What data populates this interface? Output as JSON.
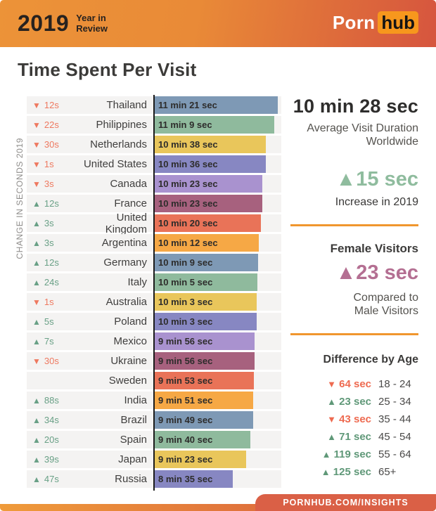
{
  "header": {
    "year": "2019",
    "subtitle_line1": "Year in",
    "subtitle_line2": "Review",
    "logo_porn": "Porn",
    "logo_hub": "hub"
  },
  "title": "Time Spent Per Visit",
  "icons": {
    "up-triangle-icon": "▲",
    "down-triangle-icon": "▼"
  },
  "colors": {
    "change_up": "#69a086",
    "change_down": "#ee7960",
    "age_up": "#5f9878",
    "age_down": "#ee6a50",
    "divider_orange": "#f0962e",
    "green_stat": "#8fbc9e",
    "pink_stat": "#b46f92",
    "header_gradient_start": "#ec9338",
    "header_gradient_end": "#d6553e",
    "hub_badge": "#f7971d"
  },
  "chart_data": {
    "type": "bar",
    "title": "Time Spent Per Visit",
    "axis_label": "CHANGE IN SECONDS 2019",
    "value_unit": "visit duration (min:sec)",
    "x_range_seconds": [
      515,
      681
    ],
    "rows": [
      {
        "country": "Thailand",
        "change": "12s",
        "direction": "down",
        "duration_label": "11 min 21 sec",
        "seconds": 681,
        "bar_color": "#7e99b5"
      },
      {
        "country": "Philippines",
        "change": "22s",
        "direction": "down",
        "duration_label": "11 min 9 sec",
        "seconds": 669,
        "bar_color": "#8fba9d"
      },
      {
        "country": "Netherlands",
        "change": "30s",
        "direction": "down",
        "duration_label": "10 min 38 sec",
        "seconds": 638,
        "bar_color": "#e9c65b"
      },
      {
        "country": "United States",
        "change": "1s",
        "direction": "down",
        "duration_label": "10 min 36 sec",
        "seconds": 636,
        "bar_color": "#8787c2"
      },
      {
        "country": "Canada",
        "change": "3s",
        "direction": "down",
        "duration_label": "10 min 23 sec",
        "seconds": 623,
        "bar_color": "#a992cf"
      },
      {
        "country": "France",
        "change": "12s",
        "direction": "up",
        "duration_label": "10 min 23 sec",
        "seconds": 623,
        "bar_color": "#a7617e"
      },
      {
        "country": "United Kingdom",
        "change": "3s",
        "direction": "up",
        "duration_label": "10 min 20 sec",
        "seconds": 620,
        "bar_color": "#e97358"
      },
      {
        "country": "Argentina",
        "change": "3s",
        "direction": "up",
        "duration_label": "10 min 12 sec",
        "seconds": 612,
        "bar_color": "#f6a845"
      },
      {
        "country": "Germany",
        "change": "12s",
        "direction": "up",
        "duration_label": "10 min 9 sec",
        "seconds": 609,
        "bar_color": "#7e99b5"
      },
      {
        "country": "Italy",
        "change": "24s",
        "direction": "up",
        "duration_label": "10 min 5 sec",
        "seconds": 605,
        "bar_color": "#8fba9d"
      },
      {
        "country": "Australia",
        "change": "1s",
        "direction": "down",
        "duration_label": "10 min 3 sec",
        "seconds": 603,
        "bar_color": "#e9c65b"
      },
      {
        "country": "Poland",
        "change": "5s",
        "direction": "up",
        "duration_label": "10 min 3 sec",
        "seconds": 603,
        "bar_color": "#8787c2"
      },
      {
        "country": "Mexico",
        "change": "7s",
        "direction": "up",
        "duration_label": "9 min 56 sec",
        "seconds": 596,
        "bar_color": "#a992cf"
      },
      {
        "country": "Ukraine",
        "change": "30s",
        "direction": "down",
        "duration_label": "9 min 56 sec",
        "seconds": 596,
        "bar_color": "#a7617e"
      },
      {
        "country": "Sweden",
        "change": "",
        "direction": "none",
        "duration_label": "9 min 53 sec",
        "seconds": 593,
        "bar_color": "#e97358"
      },
      {
        "country": "India",
        "change": "88s",
        "direction": "up",
        "duration_label": "9 min 51 sec",
        "seconds": 591,
        "bar_color": "#f6a845"
      },
      {
        "country": "Brazil",
        "change": "34s",
        "direction": "up",
        "duration_label": "9 min 49 sec",
        "seconds": 589,
        "bar_color": "#7e99b5"
      },
      {
        "country": "Spain",
        "change": "20s",
        "direction": "up",
        "duration_label": "9 min 40 sec",
        "seconds": 580,
        "bar_color": "#8fba9d"
      },
      {
        "country": "Japan",
        "change": "39s",
        "direction": "up",
        "duration_label": "9 min 23 sec",
        "seconds": 563,
        "bar_color": "#e9c65b"
      },
      {
        "country": "Russia",
        "change": "47s",
        "direction": "up",
        "duration_label": "8 min 35 sec",
        "seconds": 515,
        "bar_color": "#8787c2"
      }
    ]
  },
  "stats": {
    "worldwide": {
      "value": "10 min 28 sec",
      "label_line1": "Average Visit Duration",
      "label_line2": "Worldwide",
      "change_value": "15 sec",
      "change_direction": "up",
      "change_label": "Increase in 2019"
    },
    "female": {
      "heading": "Female Visitors",
      "change_value": "23 sec",
      "change_direction": "up",
      "label_line1": "Compared to",
      "label_line2": "Male Visitors"
    },
    "age": {
      "heading": "Difference by Age",
      "rows": [
        {
          "value": "64 sec",
          "direction": "down",
          "range": "18 - 24"
        },
        {
          "value": "23 sec",
          "direction": "up",
          "range": "25 - 34"
        },
        {
          "value": "43 sec",
          "direction": "down",
          "range": "35 - 44"
        },
        {
          "value": "71 sec",
          "direction": "up",
          "range": "45 - 54"
        },
        {
          "value": "119 sec",
          "direction": "up",
          "range": "55 - 64"
        },
        {
          "value": "125 sec",
          "direction": "up",
          "range": "65+"
        }
      ]
    }
  },
  "footer": {
    "url": "PORNHUB.COM/INSIGHTS"
  }
}
